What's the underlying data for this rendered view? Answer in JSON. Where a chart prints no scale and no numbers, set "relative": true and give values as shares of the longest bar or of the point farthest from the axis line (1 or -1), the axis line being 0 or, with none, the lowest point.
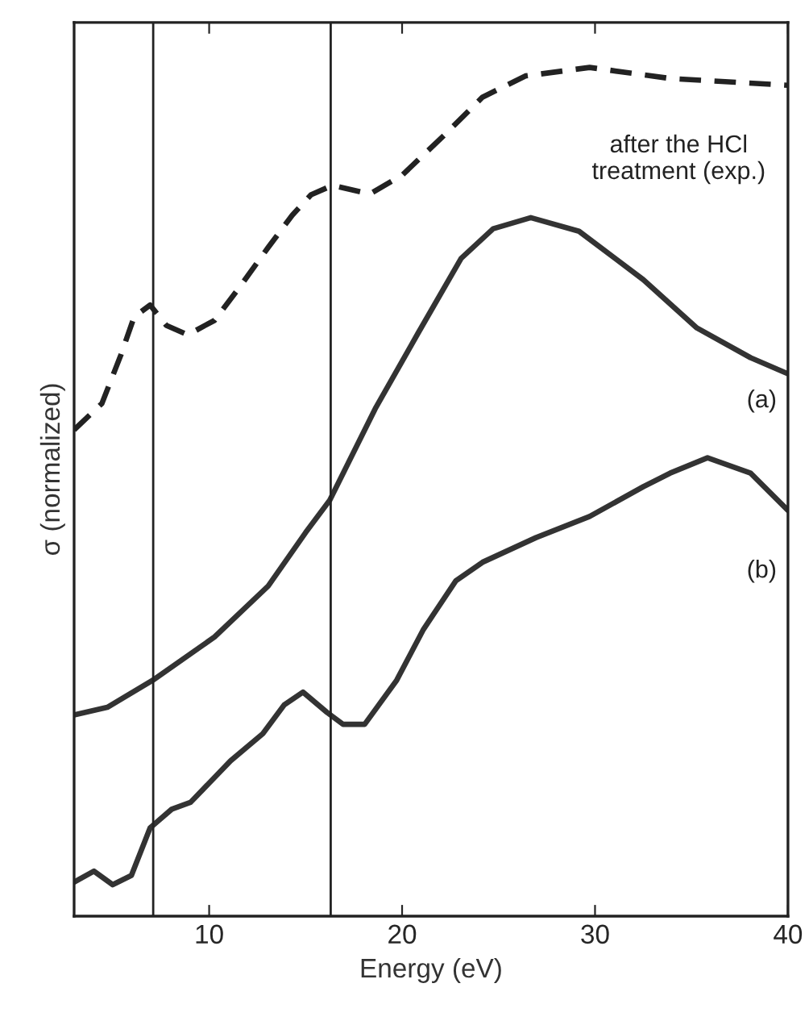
{
  "chart_data": {
    "type": "line",
    "relative": true,
    "xlabel": "Energy (eV)",
    "ylabel": "σ (normalized)",
    "xlim": [
      3,
      40
    ],
    "xticks": [
      10,
      20,
      30,
      40
    ],
    "grid": false,
    "legend": false,
    "marker": "none",
    "series": [
      {
        "name": "after the HCl\ntreatment (exp.)",
        "color": "#222222",
        "line_style": "dashed",
        "x": [
          3.0,
          4.44,
          5.42,
          6.11,
          6.94,
          7.78,
          8.89,
          10.28,
          11.67,
          13.06,
          14.31,
          15.28,
          16.39,
          18.33,
          20.0,
          22.22,
          24.17,
          26.39,
          29.72,
          33.89,
          40.0
        ],
        "values": [
          0.573,
          0.604,
          0.661,
          0.706,
          0.72,
          0.696,
          0.685,
          0.702,
          0.744,
          0.788,
          0.826,
          0.85,
          0.861,
          0.851,
          0.873,
          0.921,
          0.965,
          0.99,
          1.0,
          0.987,
          0.979
        ]
      },
      {
        "name": "(a)",
        "color": "#333333",
        "line_style": "solid",
        "x": [
          3.0,
          4.72,
          7.08,
          10.28,
          13.06,
          15.0,
          16.25,
          18.61,
          20.83,
          23.06,
          24.72,
          26.67,
          29.17,
          32.5,
          35.28,
          38.06,
          40.0
        ],
        "values": [
          0.237,
          0.246,
          0.278,
          0.329,
          0.389,
          0.452,
          0.49,
          0.598,
          0.687,
          0.775,
          0.81,
          0.823,
          0.807,
          0.75,
          0.693,
          0.658,
          0.639
        ]
      },
      {
        "name": "(b)",
        "color": "#333333",
        "line_style": "solid",
        "x": [
          3.0,
          4.03,
          5.0,
          5.97,
          6.94,
          8.06,
          9.03,
          11.11,
          12.78,
          13.89,
          14.86,
          16.11,
          16.94,
          18.06,
          19.72,
          21.11,
          22.78,
          24.17,
          26.94,
          29.72,
          32.5,
          33.89,
          35.83,
          38.06,
          40.0
        ],
        "values": [
          0.04,
          0.053,
          0.037,
          0.048,
          0.104,
          0.126,
          0.134,
          0.183,
          0.215,
          0.249,
          0.264,
          0.24,
          0.226,
          0.226,
          0.278,
          0.338,
          0.395,
          0.417,
          0.446,
          0.471,
          0.506,
          0.522,
          0.54,
          0.522,
          0.478
        ]
      }
    ],
    "ref_lines": [
      {
        "axis": "x",
        "value": 7.1,
        "color": "#222222",
        "line_style": "solid"
      },
      {
        "axis": "x",
        "value": 16.3,
        "color": "#222222",
        "line_style": "solid"
      }
    ]
  }
}
